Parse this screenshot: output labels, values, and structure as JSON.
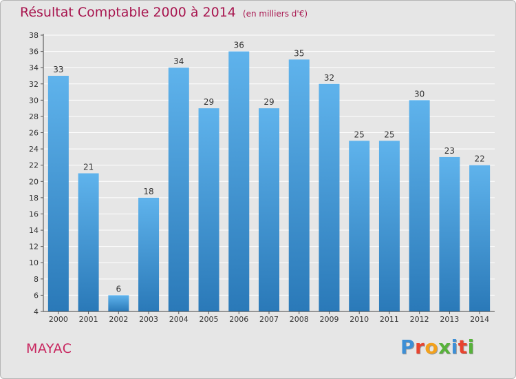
{
  "title": "Résultat Comptable 2000 à 2014",
  "unit": "(en milliers d'€)",
  "place": "MAYAC",
  "logo": {
    "text": "Proxiti",
    "letters": [
      {
        "ch": "P",
        "color": "#3d8fd6"
      },
      {
        "ch": "r",
        "color": "#e8442f"
      },
      {
        "ch": "o",
        "color": "#f3a11c"
      },
      {
        "ch": "x",
        "color": "#57b23a"
      },
      {
        "ch": "i",
        "color": "#3d8fd6"
      },
      {
        "ch": "t",
        "color": "#e8442f"
      },
      {
        "ch": "i",
        "color": "#57b23a"
      }
    ]
  },
  "chart_data": {
    "type": "bar",
    "title": "Résultat Comptable 2000 à 2014",
    "subtitle": "(en milliers d'€)",
    "categories": [
      "2000",
      "2001",
      "2002",
      "2003",
      "2004",
      "2005",
      "2006",
      "2007",
      "2008",
      "2009",
      "2010",
      "2011",
      "2012",
      "2013",
      "2014"
    ],
    "values": [
      33,
      21,
      6,
      18,
      34,
      29,
      36,
      29,
      35,
      32,
      25,
      25,
      30,
      23,
      22
    ],
    "ylim": [
      4,
      38
    ],
    "yticks": [
      4,
      6,
      8,
      10,
      12,
      14,
      16,
      18,
      20,
      22,
      24,
      26,
      28,
      30,
      32,
      34,
      36,
      38
    ],
    "grid": true,
    "xlabel": "",
    "ylabel": "",
    "bar_color_top": "#5fb3ec",
    "bar_color_bottom": "#2a79b8"
  }
}
